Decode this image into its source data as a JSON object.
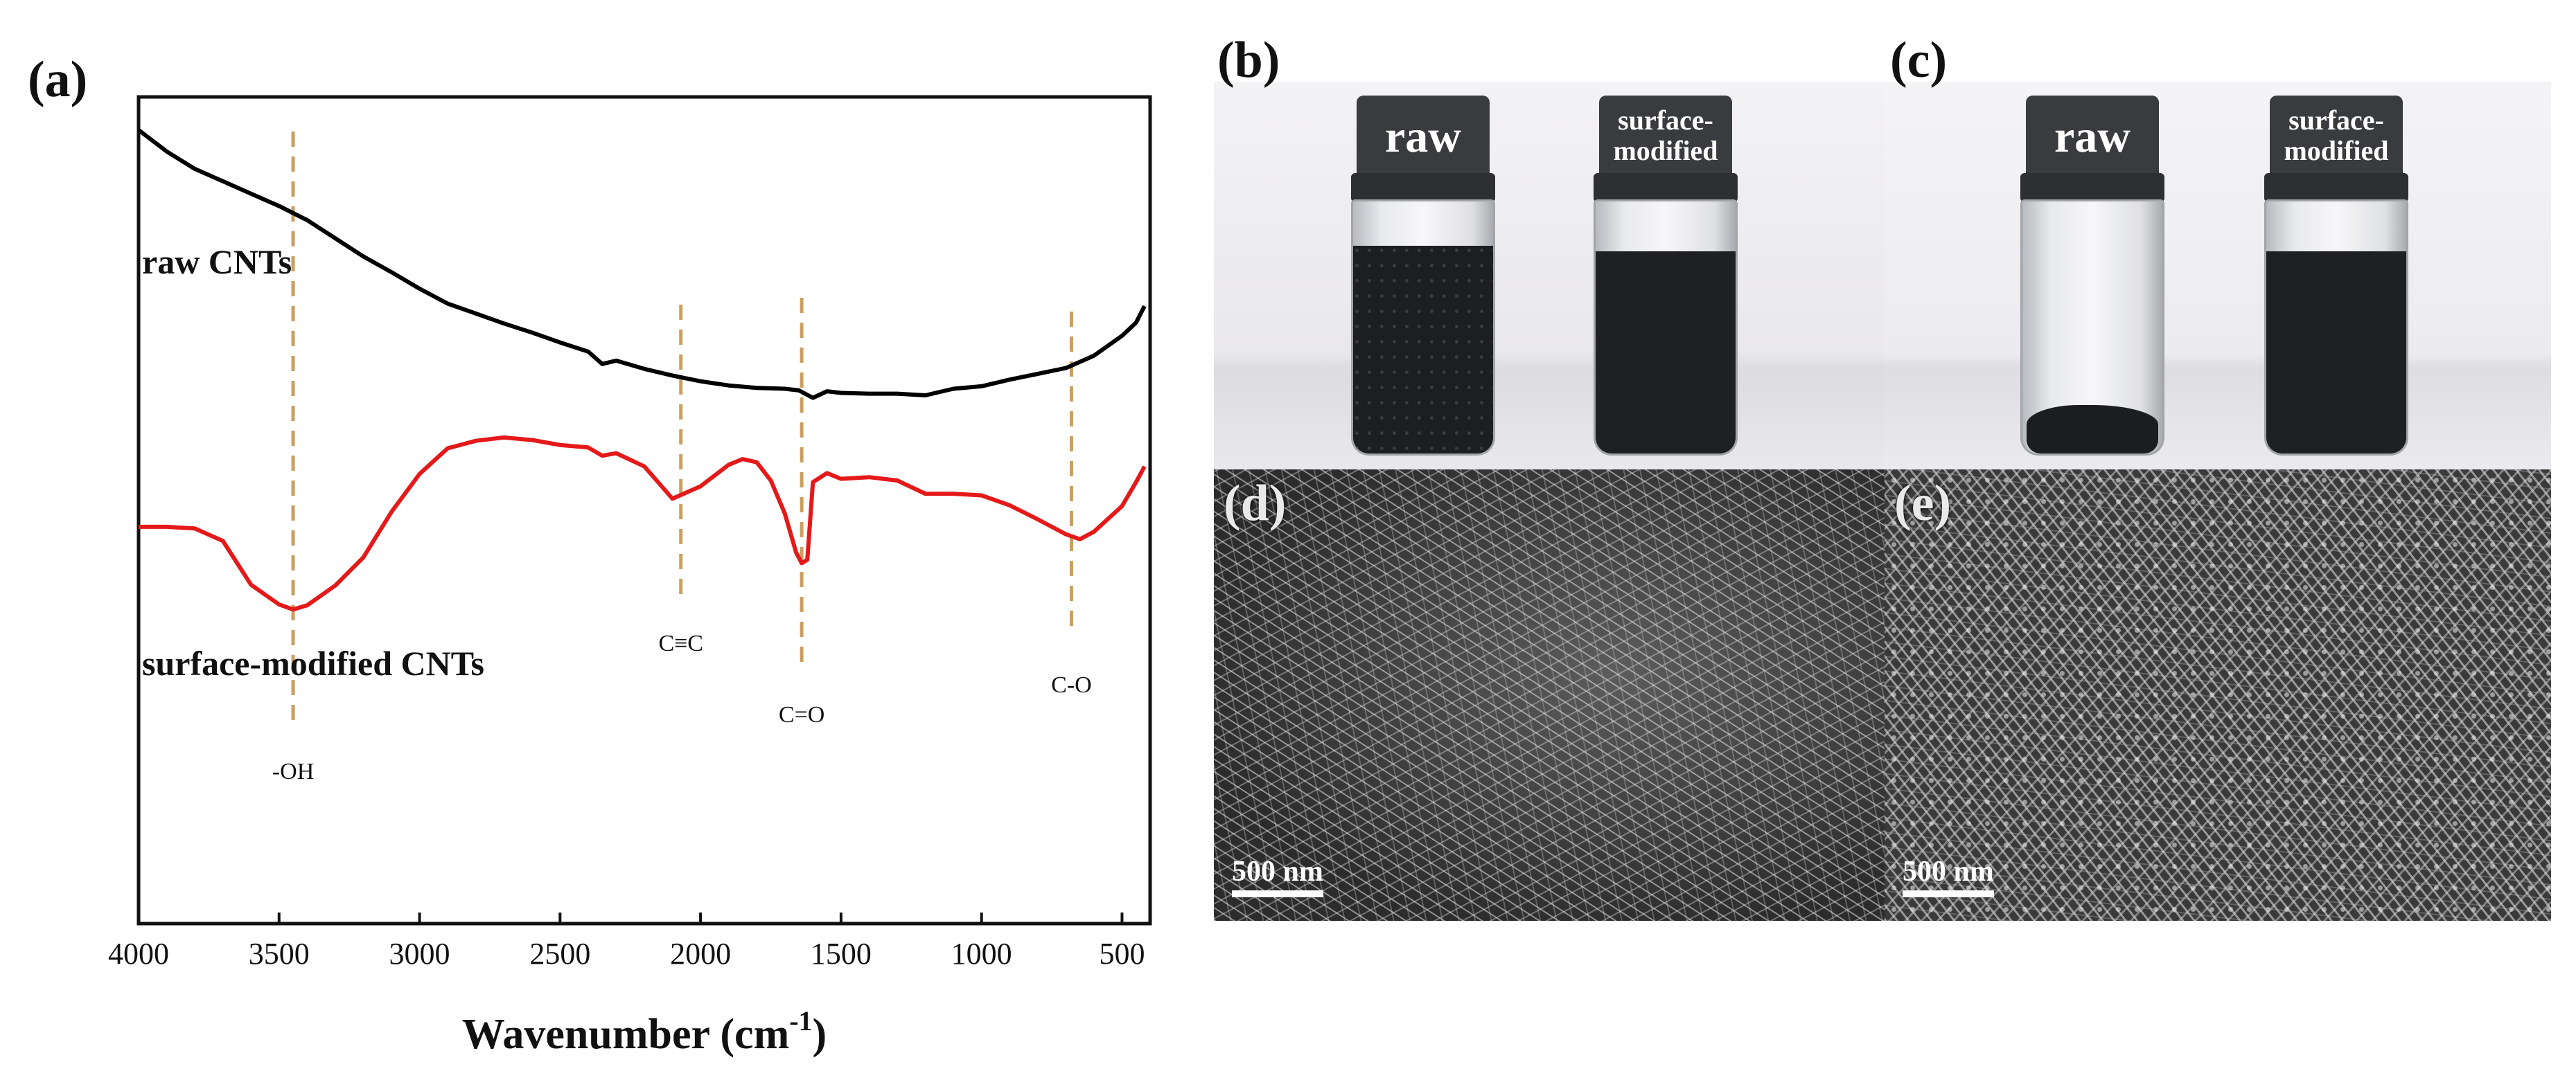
{
  "panels": {
    "a": "(a)",
    "b": "(b)",
    "c": "(c)",
    "d": "(d)",
    "e": "(e)"
  },
  "chart_data": {
    "type": "line",
    "title": "",
    "xlabel": "Wavenumber (cm",
    "xlabel_sup": "-1",
    "xlabel_close": ")",
    "ylabel": "",
    "xlim": [
      4000,
      400
    ],
    "ylim": [
      0,
      100
    ],
    "xticks": [
      4000,
      3500,
      3000,
      2500,
      2000,
      1500,
      1000,
      500
    ],
    "series": [
      {
        "name": "raw CNTs",
        "color": "#000000",
        "x": [
          4000,
          3900,
          3800,
          3700,
          3600,
          3500,
          3400,
          3300,
          3200,
          3100,
          3000,
          2900,
          2800,
          2700,
          2600,
          2500,
          2400,
          2350,
          2300,
          2200,
          2100,
          2000,
          1900,
          1800,
          1700,
          1650,
          1600,
          1550,
          1500,
          1400,
          1300,
          1200,
          1100,
          1000,
          900,
          800,
          700,
          600,
          500,
          450,
          420
        ],
        "y": [
          96,
          93.4,
          91.3,
          89.8,
          88.3,
          86.8,
          85.1,
          82.9,
          80.7,
          78.8,
          76.8,
          75.0,
          73.8,
          72.6,
          71.5,
          70.3,
          69.2,
          67.7,
          68.1,
          67.1,
          66.3,
          65.6,
          65.1,
          64.8,
          64.7,
          64.5,
          63.6,
          64.4,
          64.2,
          64.1,
          64.1,
          63.9,
          64.7,
          65.0,
          65.8,
          66.5,
          67.2,
          68.7,
          71.1,
          72.7,
          74.7
        ]
      },
      {
        "name": "surface-modified CNTs",
        "color": "#e51919",
        "x": [
          4000,
          3900,
          3800,
          3700,
          3600,
          3500,
          3450,
          3400,
          3300,
          3200,
          3100,
          3000,
          2900,
          2800,
          2700,
          2600,
          2500,
          2400,
          2350,
          2300,
          2200,
          2100,
          2000,
          1900,
          1850,
          1800,
          1750,
          1700,
          1660,
          1640,
          1620,
          1600,
          1550,
          1500,
          1400,
          1300,
          1200,
          1100,
          1000,
          900,
          800,
          700,
          650,
          600,
          500,
          450,
          420
        ],
        "y": [
          48,
          48,
          47.8,
          46.3,
          41.0,
          38.6,
          38.0,
          38.5,
          40.9,
          44.3,
          49.8,
          54.4,
          57.5,
          58.4,
          58.8,
          58.5,
          57.9,
          57.6,
          56.6,
          56.9,
          55.3,
          51.4,
          52.9,
          55.5,
          56.2,
          55.8,
          53.6,
          49.6,
          44.9,
          43.6,
          44.0,
          53.4,
          54.5,
          53.8,
          54.0,
          53.6,
          52.0,
          52.0,
          51.8,
          50.6,
          48.9,
          47.1,
          46.5,
          47.4,
          50.5,
          53.4,
          55.3
        ]
      }
    ],
    "curve_labels": [
      "raw CNTs",
      "surface-modified CNTs"
    ],
    "annotations": [
      {
        "label": "-OH",
        "x": 3450
      },
      {
        "label": "C≡C",
        "x": 2070
      },
      {
        "label": "C=O",
        "x": 1640
      },
      {
        "label": "C-O",
        "x": 680
      }
    ],
    "grid": false
  },
  "photos": {
    "b": {
      "vial_left": "raw",
      "vial_right_line1": "surface-",
      "vial_right_line2": "modified"
    },
    "c": {
      "vial_left": "raw",
      "vial_right_line1": "surface-",
      "vial_right_line2": "modified"
    }
  },
  "sem": {
    "d": {
      "scalebar": "500 nm"
    },
    "e": {
      "scalebar": "500 nm"
    }
  }
}
